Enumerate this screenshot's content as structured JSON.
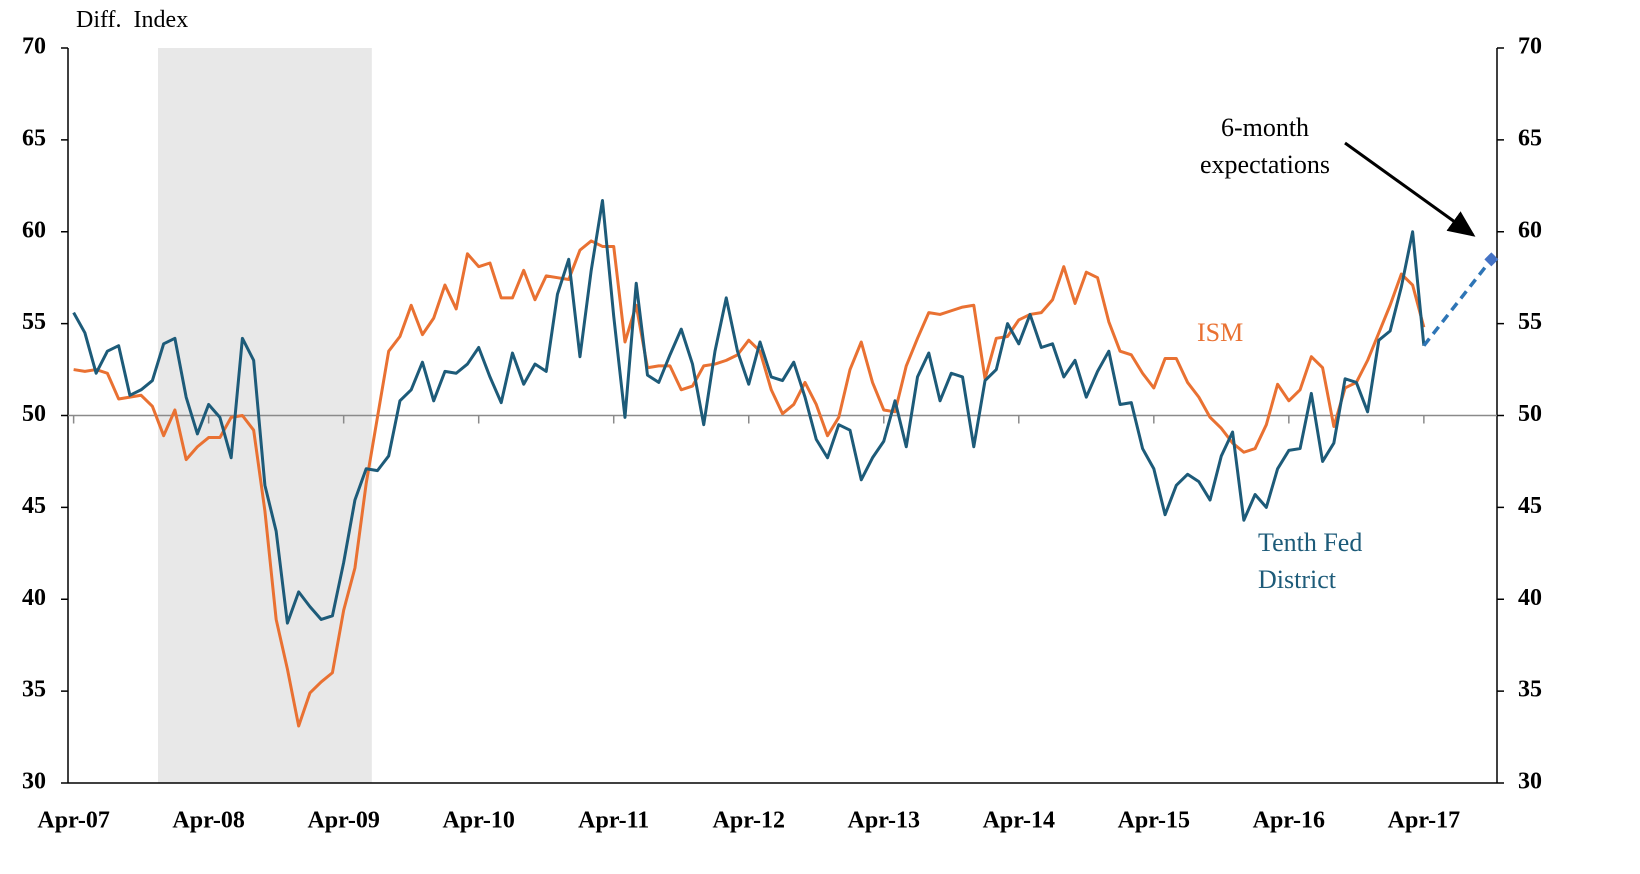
{
  "chart_data": {
    "type": "line",
    "y_label": "Diff.  Index",
    "categories": [
      "Apr-07",
      null,
      null,
      null,
      null,
      null,
      null,
      null,
      null,
      null,
      null,
      null,
      "Apr-08",
      null,
      null,
      null,
      null,
      null,
      null,
      null,
      null,
      null,
      null,
      null,
      "Apr-09",
      null,
      null,
      null,
      null,
      null,
      null,
      null,
      null,
      null,
      null,
      null,
      "Apr-10",
      null,
      null,
      null,
      null,
      null,
      null,
      null,
      null,
      null,
      null,
      null,
      "Apr-11",
      null,
      null,
      null,
      null,
      null,
      null,
      null,
      null,
      null,
      null,
      null,
      "Apr-12",
      null,
      null,
      null,
      null,
      null,
      null,
      null,
      null,
      null,
      null,
      null,
      "Apr-13",
      null,
      null,
      null,
      null,
      null,
      null,
      null,
      null,
      null,
      null,
      null,
      "Apr-14",
      null,
      null,
      null,
      null,
      null,
      null,
      null,
      null,
      null,
      null,
      null,
      "Apr-15",
      null,
      null,
      null,
      null,
      null,
      null,
      null,
      null,
      null,
      null,
      null,
      "Apr-16",
      null,
      null,
      null,
      null,
      null,
      null,
      null,
      null,
      null,
      null,
      null,
      "Apr-17",
      null,
      null,
      null,
      null,
      null,
      null
    ],
    "series": [
      {
        "name": "ISM",
        "color": "#E97132",
        "values": [
          52.5,
          52.4,
          52.5,
          52.3,
          50.9,
          51.0,
          51.1,
          50.5,
          48.9,
          50.3,
          47.6,
          48.3,
          48.8,
          48.8,
          49.9,
          50.0,
          49.2,
          44.8,
          38.9,
          36.2,
          33.1,
          34.9,
          35.5,
          36.0,
          39.4,
          41.7,
          46.3,
          49.9,
          53.5,
          54.3,
          56.0,
          54.4,
          55.3,
          57.1,
          55.8,
          58.8,
          58.1,
          58.3,
          56.4,
          56.4,
          57.9,
          56.3,
          57.6,
          57.5,
          57.4,
          59.0,
          59.5,
          59.2,
          59.2,
          54.0,
          56.0,
          52.6,
          52.7,
          52.7,
          51.4,
          51.6,
          52.7,
          52.8,
          53.0,
          53.3,
          54.1,
          53.5,
          51.4,
          50.1,
          50.6,
          51.8,
          50.6,
          48.9,
          49.9,
          52.5,
          54.0,
          51.8,
          50.3,
          50.2,
          52.7,
          54.2,
          55.6,
          55.5,
          55.7,
          55.9,
          56.0,
          52.0,
          54.2,
          54.3,
          55.2,
          55.5,
          55.6,
          56.3,
          58.1,
          56.1,
          57.8,
          57.5,
          55.1,
          53.5,
          53.3,
          52.3,
          51.5,
          53.1,
          53.1,
          51.8,
          51.0,
          49.9,
          49.3,
          48.5,
          48.0,
          48.2,
          49.5,
          51.7,
          50.8,
          51.4,
          53.2,
          52.6,
          49.4,
          51.5,
          51.8,
          53.0,
          54.5,
          56.0,
          57.7,
          57.1,
          54.8,
          null,
          null,
          null,
          null,
          null,
          null
        ]
      },
      {
        "name": "Tenth Fed District",
        "color": "#1D5B79",
        "values": [
          55.6,
          54.5,
          52.3,
          53.5,
          53.8,
          51.1,
          51.4,
          51.9,
          53.9,
          54.2,
          51.0,
          49.0,
          50.6,
          49.9,
          47.7,
          54.2,
          53.0,
          46.2,
          43.7,
          38.7,
          40.4,
          39.6,
          38.9,
          39.1,
          42.0,
          45.4,
          47.1,
          47.0,
          47.8,
          50.8,
          51.4,
          52.9,
          50.8,
          52.4,
          52.3,
          52.8,
          53.7,
          52.1,
          50.7,
          53.4,
          51.7,
          52.8,
          52.4,
          56.6,
          58.5,
          53.2,
          57.9,
          61.7,
          55.4,
          49.9,
          57.2,
          52.2,
          51.8,
          53.3,
          54.7,
          52.8,
          49.5,
          53.5,
          56.4,
          53.5,
          51.7,
          54.0,
          52.1,
          51.9,
          52.9,
          51.0,
          48.7,
          47.7,
          49.5,
          49.2,
          46.5,
          47.7,
          48.6,
          50.8,
          48.3,
          52.1,
          53.4,
          50.8,
          52.3,
          52.1,
          48.3,
          51.9,
          52.5,
          55.0,
          53.9,
          55.5,
          53.7,
          53.9,
          52.1,
          53.0,
          51.0,
          52.4,
          53.5,
          50.6,
          50.7,
          48.2,
          47.1,
          44.6,
          46.2,
          46.8,
          46.4,
          45.4,
          47.8,
          49.1,
          44.3,
          45.7,
          45.0,
          47.1,
          48.1,
          48.2,
          51.2,
          47.5,
          48.5,
          52.0,
          51.8,
          50.2,
          54.1,
          54.6,
          57.0,
          60.0,
          53.8,
          null,
          null,
          null,
          null,
          null,
          null
        ]
      },
      {
        "name": "6-month expectations",
        "color": "#2E75B6",
        "dashed": true,
        "connect_gaps": true,
        "end_marker": "diamond",
        "marker_color": "#4472C4",
        "values": [
          null,
          null,
          null,
          null,
          null,
          null,
          null,
          null,
          null,
          null,
          null,
          null,
          null,
          null,
          null,
          null,
          null,
          null,
          null,
          null,
          null,
          null,
          null,
          null,
          null,
          null,
          null,
          null,
          null,
          null,
          null,
          null,
          null,
          null,
          null,
          null,
          null,
          null,
          null,
          null,
          null,
          null,
          null,
          null,
          null,
          null,
          null,
          null,
          null,
          null,
          null,
          null,
          null,
          null,
          null,
          null,
          null,
          null,
          null,
          null,
          null,
          null,
          null,
          null,
          null,
          null,
          null,
          null,
          null,
          null,
          null,
          null,
          null,
          null,
          null,
          null,
          null,
          null,
          null,
          null,
          null,
          null,
          null,
          null,
          null,
          null,
          null,
          null,
          null,
          null,
          null,
          null,
          null,
          null,
          null,
          null,
          null,
          null,
          null,
          null,
          null,
          null,
          null,
          null,
          null,
          null,
          null,
          null,
          null,
          null,
          null,
          null,
          null,
          null,
          null,
          null,
          null,
          null,
          null,
          null,
          53.8,
          null,
          null,
          null,
          null,
          null,
          58.5
        ]
      }
    ],
    "shade": {
      "start": 8,
      "end": 27,
      "color": "#E8E8E8"
    },
    "hline": 50,
    "ylim": [
      30,
      70
    ],
    "yticks": [
      30,
      35,
      40,
      45,
      50,
      55,
      60,
      65,
      70
    ],
    "y2lim": [
      30,
      70
    ],
    "y2ticks": [
      30,
      35,
      40,
      45,
      50,
      55,
      60,
      65,
      70
    ]
  }
}
